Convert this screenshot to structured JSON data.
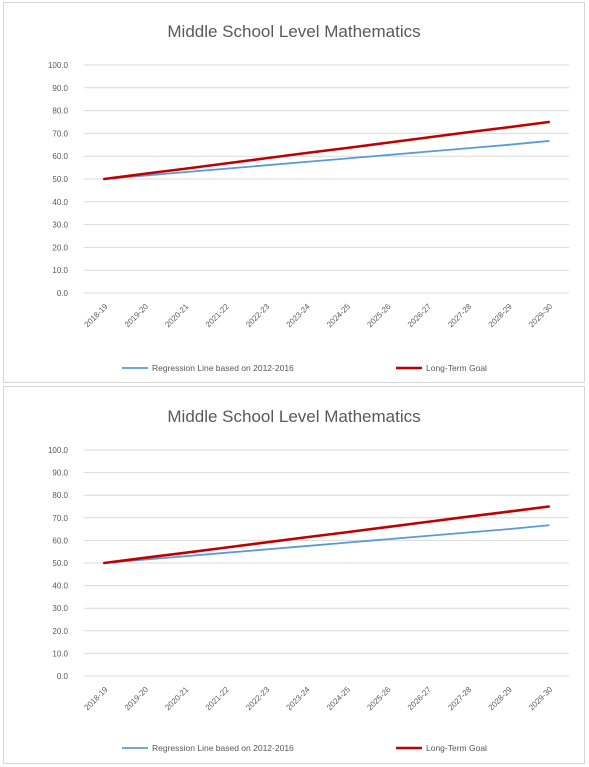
{
  "chart_data": [
    {
      "type": "line",
      "title": "Middle School Level Mathematics",
      "xlabel": "",
      "ylabel": "",
      "categories": [
        "2018-19",
        "2019-20",
        "2020-21",
        "2021-22",
        "2022-23",
        "2023-24",
        "2024-25",
        "2025-26",
        "2026-27",
        "2027-28",
        "2028-29",
        "2029-30"
      ],
      "ylim": [
        0,
        100
      ],
      "yticks": [
        "0.0",
        "10.0",
        "20.0",
        "30.0",
        "40.0",
        "50.0",
        "60.0",
        "70.0",
        "80.0",
        "90.0",
        "100.0"
      ],
      "grid": true,
      "legend_position": "bottom",
      "series": [
        {
          "name": "Regression Line based on 2012-2016",
          "color": "#5b9bd5",
          "values": [
            50.0,
            51.5,
            53.0,
            54.5,
            56.0,
            57.5,
            59.0,
            60.5,
            62.0,
            63.5,
            65.0,
            66.7
          ]
        },
        {
          "name": "Long-Term Goal",
          "color": "#c00000",
          "values": [
            50.0,
            52.3,
            54.5,
            56.8,
            59.1,
            61.4,
            63.6,
            65.9,
            68.2,
            70.5,
            72.7,
            75.0
          ]
        }
      ]
    },
    {
      "type": "line",
      "title": "Middle School Level Mathematics",
      "xlabel": "",
      "ylabel": "",
      "categories": [
        "2018-19",
        "2019-20",
        "2020-21",
        "2021-22",
        "2022-23",
        "2023-24",
        "2024-25",
        "2025-26",
        "2026-27",
        "2027-28",
        "2028-29",
        "2029-30"
      ],
      "ylim": [
        0,
        100
      ],
      "yticks": [
        "0.0",
        "10.0",
        "20.0",
        "30.0",
        "40.0",
        "50.0",
        "60.0",
        "70.0",
        "80.0",
        "90.0",
        "100.0"
      ],
      "grid": true,
      "legend_position": "bottom",
      "series": [
        {
          "name": "Regression Line based on 2012-2016",
          "color": "#5b9bd5",
          "values": [
            50.0,
            51.5,
            53.0,
            54.5,
            56.0,
            57.5,
            59.0,
            60.5,
            62.0,
            63.5,
            65.0,
            66.7
          ]
        },
        {
          "name": "Long-Term Goal",
          "color": "#c00000",
          "values": [
            50.0,
            52.3,
            54.5,
            56.8,
            59.1,
            61.4,
            63.6,
            65.9,
            68.2,
            70.5,
            72.7,
            75.0
          ]
        }
      ]
    }
  ]
}
